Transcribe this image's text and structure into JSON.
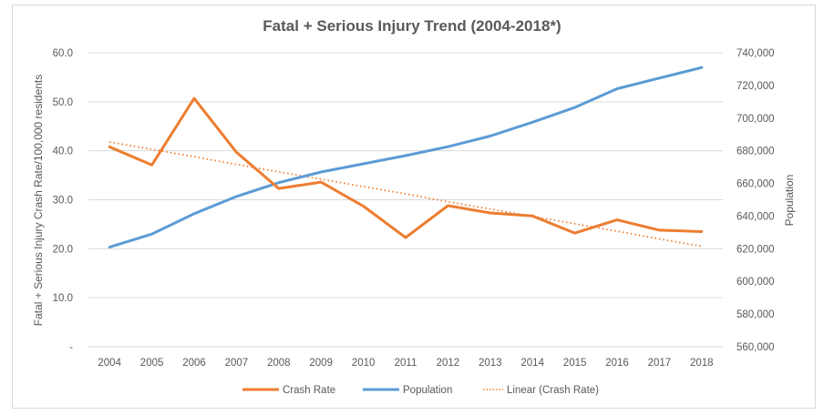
{
  "chart_data": {
    "type": "line",
    "title": "Fatal + Serious Injury Trend (2004-2018*)",
    "xlabel": "",
    "ylabel": "Fatal + Serious Injury Crash Rate/100,000 residents",
    "y2label": "Population",
    "categories": [
      "2004",
      "2005",
      "2006",
      "2007",
      "2008",
      "2009",
      "2010",
      "2011",
      "2012",
      "2013",
      "2014",
      "2015",
      "2016",
      "2017",
      "2018"
    ],
    "ylim": [
      0,
      60
    ],
    "y_ticks": [
      0,
      10,
      20,
      30,
      40,
      50,
      60
    ],
    "y_tick_labels": [
      "-",
      "10.0",
      "20.0",
      "30.0",
      "40.0",
      "50.0",
      "60.0"
    ],
    "y2lim": [
      560000,
      740000
    ],
    "y2_ticks": [
      560000,
      580000,
      600000,
      620000,
      640000,
      660000,
      680000,
      700000,
      720000,
      740000
    ],
    "y2_tick_labels": [
      "560,000",
      "580,000",
      "600,000",
      "620,000",
      "640,000",
      "660,000",
      "680,000",
      "700,000",
      "720,000",
      "740,000"
    ],
    "grid": true,
    "legend_position": "bottom",
    "series": [
      {
        "name": "Crash Rate",
        "axis": "left",
        "color": "#ED7D31",
        "style": "solid",
        "values": [
          40.8,
          37.1,
          50.7,
          39.7,
          32.3,
          33.6,
          28.7,
          22.3,
          28.8,
          27.3,
          26.7,
          23.2,
          25.9,
          23.8,
          23.5
        ]
      },
      {
        "name": "Population",
        "axis": "right",
        "color": "#5B9BD5",
        "style": "solid",
        "values": [
          621000,
          629000,
          641500,
          652000,
          660500,
          667000,
          672000,
          677000,
          682500,
          689000,
          697500,
          706500,
          718000,
          724500,
          731000
        ]
      },
      {
        "name": "Linear (Crash Rate)",
        "axis": "left",
        "color": "#ED7D31",
        "style": "dotted",
        "values": [
          41.8,
          40.3,
          38.8,
          37.2,
          35.7,
          34.2,
          32.7,
          31.2,
          29.6,
          28.1,
          26.6,
          25.1,
          23.6,
          22.0,
          20.5
        ]
      }
    ]
  }
}
